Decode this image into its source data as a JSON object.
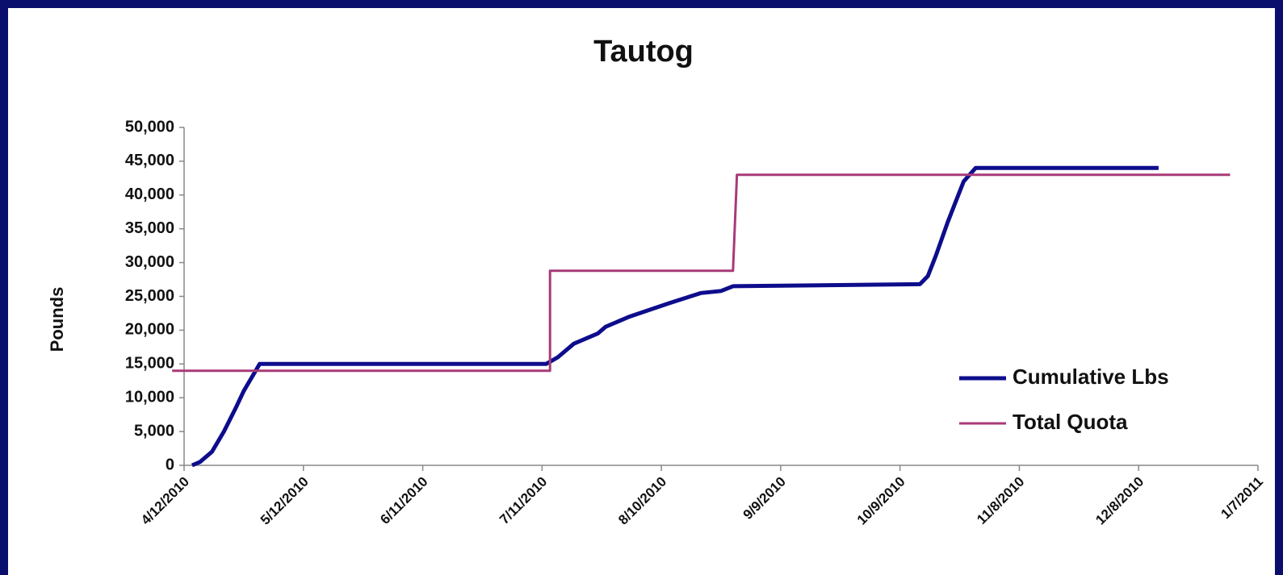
{
  "chart_data": {
    "type": "line",
    "title": "Tautog",
    "y_label": "Pounds",
    "xlim": [
      "4/12/2010",
      "1/7/2011"
    ],
    "xticks": [
      "4/12/2010",
      "5/12/2010",
      "6/11/2010",
      "7/11/2010",
      "8/10/2010",
      "9/9/2010",
      "10/9/2010",
      "11/8/2010",
      "12/8/2010",
      "1/7/2011"
    ],
    "ylim": [
      0,
      50000
    ],
    "yticks": [
      0,
      {
        "value": 5000,
        "label": "5,000"
      },
      {
        "value": 10000,
        "label": "10,000"
      },
      {
        "value": 15000,
        "label": "15,000"
      },
      {
        "value": 20000,
        "label": "20,000"
      },
      {
        "value": 25000,
        "label": "25,000"
      },
      {
        "value": 30000,
        "label": "30,000"
      },
      {
        "value": 35000,
        "label": "35,000"
      },
      {
        "value": 40000,
        "label": "40,000"
      },
      {
        "value": 45000,
        "label": "45,000"
      },
      {
        "value": 50000,
        "label": "50,000"
      }
    ],
    "legend": "lower right",
    "series": [
      {
        "name": "Cumulative Lbs",
        "color": "#0d0d8c",
        "x": [
          "4/14/2010",
          "4/16/2010",
          "4/19/2010",
          "4/22/2010",
          "4/25/2010",
          "4/27/2010",
          "4/29/2010",
          "5/1/2010",
          "7/12/2010",
          "7/15/2010",
          "7/19/2010",
          "7/25/2010",
          "7/27/2010",
          "8/2/2010",
          "8/7/2010",
          "8/12/2010",
          "8/20/2010",
          "8/25/2010",
          "8/28/2010",
          "10/14/2010",
          "10/16/2010",
          "10/18/2010",
          "10/21/2010",
          "10/23/2010",
          "10/25/2010",
          "10/28/2010",
          "12/13/2010"
        ],
        "values": [
          0,
          500,
          2000,
          5000,
          8500,
          11000,
          13000,
          15000,
          15000,
          16000,
          18000,
          19500,
          20500,
          22000,
          23000,
          24000,
          25500,
          25800,
          26500,
          26800,
          28000,
          31000,
          36000,
          39000,
          42000,
          44000,
          44000
        ]
      },
      {
        "name": "Total Quota",
        "color": "#a83a78",
        "x": [
          "4/9/2010",
          "7/13/2010",
          "7/13/2010",
          "8/28/2010",
          "8/29/2010",
          "12/31/2010"
        ],
        "values": [
          14000,
          14000,
          28800,
          28800,
          43000,
          43000
        ]
      }
    ]
  }
}
